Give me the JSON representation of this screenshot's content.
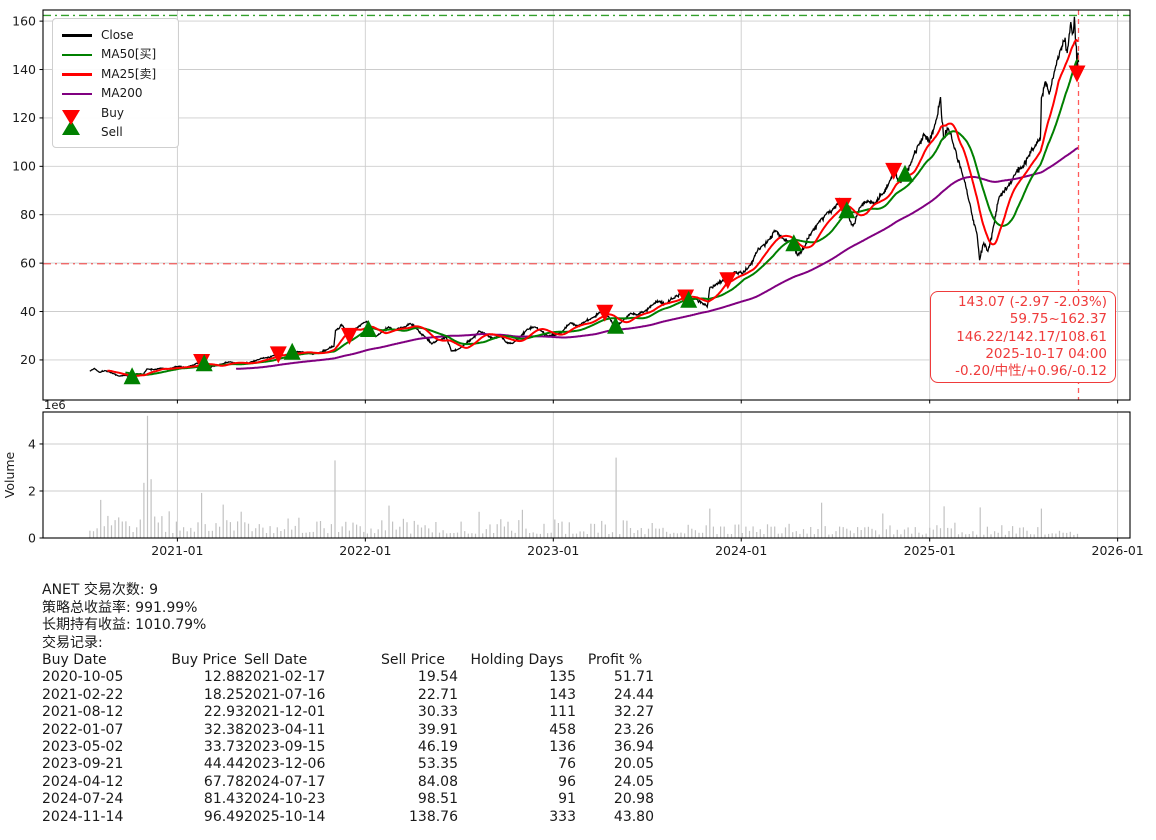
{
  "accent_colors": {
    "close": "#000000",
    "ma50": "#008000",
    "ma25": "#ff0000",
    "ma200": "#800080",
    "buy": "#008000",
    "sell": "#ff0000",
    "high_line": "#33a02c",
    "low_line": "#f25c5c",
    "vline": "#ff5a5a",
    "annotation": "#ef3b3b",
    "volume_bar": "#c2c2c2",
    "grid": "#cdcdcd"
  },
  "legend": {
    "items": [
      {
        "label": "Close",
        "color": "#000000",
        "kind": "line"
      },
      {
        "label": "MA50[买]",
        "color": "#008000",
        "kind": "line"
      },
      {
        "label": "MA25[卖]",
        "color": "#ff0000",
        "kind": "line"
      },
      {
        "label": "MA200",
        "color": "#800080",
        "kind": "line"
      },
      {
        "label": "Buy",
        "color": "#008000",
        "kind": "triangle-up"
      },
      {
        "label": "Sell",
        "color": "#ff0000",
        "kind": "triangle-down"
      }
    ]
  },
  "annotation": {
    "lines": [
      "143.07 (-2.97 -2.03%)",
      "59.75~162.37",
      "146.22/142.17/108.61",
      "2025-10-17 04:00",
      "-0.20/中性/+0.96/-0.12"
    ]
  },
  "summary": {
    "line1": "ANET 交易次数: 9",
    "line2": "策略总收益率: 991.99%",
    "line3": "长期持有收益: 1010.79%",
    "line4": "交易记录:"
  },
  "table": {
    "headers": [
      "Buy Date",
      "Buy Price",
      "Sell Date",
      "Sell Price",
      "Holding Days",
      "Profit %"
    ]
  },
  "chart_data": {
    "type": "line",
    "title": "",
    "xlabel": "",
    "ylabel": "",
    "grid": true,
    "legend_position": "upper-left",
    "x_axis": {
      "lim": [
        "2020-04-15",
        "2026-01-25"
      ],
      "tick_labels": [
        "2021-01",
        "2022-01",
        "2023-01",
        "2024-01",
        "2025-01",
        "2026-01"
      ],
      "tick_dates": [
        "2021-01-01",
        "2022-01-01",
        "2023-01-01",
        "2024-01-01",
        "2025-01-01",
        "2026-01-01"
      ]
    },
    "y_axis": {
      "lim": [
        3.44,
        164.6
      ],
      "ticks": [
        20,
        40,
        60,
        80,
        100,
        120,
        140,
        160
      ]
    },
    "volume_axis": {
      "lim_millions": [
        0,
        5.36
      ],
      "ticks": [
        0,
        2,
        4
      ],
      "offset_label": "1e6",
      "label": "Volume"
    },
    "levels": {
      "high_52w": 162.37,
      "low_52w": 59.75,
      "last_close": 143.07,
      "last_date": "2025-10-17"
    },
    "ma_lines": [
      {
        "name": "MA200",
        "window_days": 285,
        "color": "#800080"
      },
      {
        "name": "MA50",
        "window_days": 70,
        "color": "#008000"
      },
      {
        "name": "MA25",
        "window_days": 35,
        "color": "#ff0000"
      }
    ],
    "close_series": [
      [
        "2020-07-15",
        15.3
      ],
      [
        "2020-07-24",
        16.5
      ],
      [
        "2020-08-03",
        14.9
      ],
      [
        "2020-08-13",
        15.6
      ],
      [
        "2020-08-31",
        14.3
      ],
      [
        "2020-09-10",
        13.3
      ],
      [
        "2020-09-23",
        13.6
      ],
      [
        "2020-10-05",
        12.88
      ],
      [
        "2020-10-14",
        14.3
      ],
      [
        "2020-10-27",
        14.0
      ],
      [
        "2020-11-03",
        16.3
      ],
      [
        "2020-11-17",
        16.0
      ],
      [
        "2020-12-01",
        16.6
      ],
      [
        "2020-12-15",
        16.3
      ],
      [
        "2021-01-05",
        17.4
      ],
      [
        "2021-01-19",
        17.0
      ],
      [
        "2021-02-01",
        17.8
      ],
      [
        "2021-02-17",
        19.54
      ],
      [
        "2021-02-22",
        18.25
      ],
      [
        "2021-03-04",
        16.9
      ],
      [
        "2021-03-16",
        17.6
      ],
      [
        "2021-03-30",
        18.4
      ],
      [
        "2021-04-13",
        19.2
      ],
      [
        "2021-04-27",
        18.7
      ],
      [
        "2021-05-11",
        18.3
      ],
      [
        "2021-05-25",
        19.3
      ],
      [
        "2021-06-08",
        20.1
      ],
      [
        "2021-06-22",
        20.9
      ],
      [
        "2021-07-06",
        21.8
      ],
      [
        "2021-07-16",
        22.71
      ],
      [
        "2021-07-27",
        21.9
      ],
      [
        "2021-08-12",
        22.93
      ],
      [
        "2021-08-25",
        23.4
      ],
      [
        "2021-09-08",
        23.0
      ],
      [
        "2021-09-21",
        22.3
      ],
      [
        "2021-10-05",
        23.2
      ],
      [
        "2021-10-19",
        24.3
      ],
      [
        "2021-11-01",
        25.6
      ],
      [
        "2021-11-04",
        32.2
      ],
      [
        "2021-11-16",
        34.6
      ],
      [
        "2021-11-23",
        32.8
      ],
      [
        "2021-12-01",
        30.33
      ],
      [
        "2021-12-08",
        32.3
      ],
      [
        "2021-12-28",
        35.2
      ],
      [
        "2022-01-04",
        35.9
      ],
      [
        "2022-01-07",
        32.38
      ],
      [
        "2022-01-21",
        29.6
      ],
      [
        "2022-02-04",
        31.6
      ],
      [
        "2022-02-15",
        33.7
      ],
      [
        "2022-03-01",
        32.2
      ],
      [
        "2022-03-15",
        33.4
      ],
      [
        "2022-03-29",
        35.1
      ],
      [
        "2022-04-12",
        32.6
      ],
      [
        "2022-04-26",
        29.8
      ],
      [
        "2022-05-10",
        26.6
      ],
      [
        "2022-05-24",
        28.4
      ],
      [
        "2022-06-07",
        29.5
      ],
      [
        "2022-06-17",
        23.7
      ],
      [
        "2022-06-30",
        24.4
      ],
      [
        "2022-07-14",
        26.6
      ],
      [
        "2022-07-28",
        28.9
      ],
      [
        "2022-08-09",
        31.9
      ],
      [
        "2022-08-23",
        30.6
      ],
      [
        "2022-09-06",
        29.0
      ],
      [
        "2022-09-20",
        30.1
      ],
      [
        "2022-09-30",
        27.5
      ],
      [
        "2022-10-14",
        26.8
      ],
      [
        "2022-10-28",
        29.3
      ],
      [
        "2022-11-11",
        32.6
      ],
      [
        "2022-11-25",
        33.6
      ],
      [
        "2022-12-09",
        32.0
      ],
      [
        "2022-12-22",
        29.9
      ],
      [
        "2023-01-06",
        30.3
      ],
      [
        "2023-01-20",
        32.1
      ],
      [
        "2023-02-03",
        35.3
      ],
      [
        "2023-02-17",
        34.2
      ],
      [
        "2023-03-03",
        35.6
      ],
      [
        "2023-03-17",
        37.3
      ],
      [
        "2023-03-31",
        39.6
      ],
      [
        "2023-04-11",
        39.91
      ],
      [
        "2023-04-21",
        37.0
      ],
      [
        "2023-05-02",
        33.73
      ],
      [
        "2023-05-16",
        36.1
      ],
      [
        "2023-05-31",
        39.3
      ],
      [
        "2023-06-14",
        38.6
      ],
      [
        "2023-06-28",
        40.2
      ],
      [
        "2023-07-12",
        42.6
      ],
      [
        "2023-07-26",
        44.3
      ],
      [
        "2023-08-08",
        43.2
      ],
      [
        "2023-08-22",
        45.4
      ],
      [
        "2023-09-05",
        47.4
      ],
      [
        "2023-09-15",
        46.19
      ],
      [
        "2023-09-21",
        44.44
      ],
      [
        "2023-10-03",
        45.8
      ],
      [
        "2023-10-17",
        43.6
      ],
      [
        "2023-10-27",
        41.9
      ],
      [
        "2023-11-01",
        49.8
      ],
      [
        "2023-11-14",
        51.6
      ],
      [
        "2023-11-28",
        52.8
      ],
      [
        "2023-12-06",
        53.35
      ],
      [
        "2023-12-19",
        56.4
      ],
      [
        "2024-01-03",
        55.6
      ],
      [
        "2024-01-17",
        59.0
      ],
      [
        "2024-01-31",
        64.3
      ],
      [
        "2024-02-09",
        66.8
      ],
      [
        "2024-02-23",
        69.6
      ],
      [
        "2024-03-08",
        73.4
      ],
      [
        "2024-03-22",
        70.3
      ],
      [
        "2024-04-05",
        69.0
      ],
      [
        "2024-04-12",
        67.78
      ],
      [
        "2024-04-19",
        63.2
      ],
      [
        "2024-05-03",
        66.7
      ],
      [
        "2024-05-17",
        72.9
      ],
      [
        "2024-05-31",
        77.1
      ],
      [
        "2024-06-14",
        80.2
      ],
      [
        "2024-06-28",
        82.5
      ],
      [
        "2024-07-10",
        86.4
      ],
      [
        "2024-07-17",
        84.08
      ],
      [
        "2024-07-24",
        81.43
      ],
      [
        "2024-08-05",
        75.4
      ],
      [
        "2024-08-19",
        83.1
      ],
      [
        "2024-09-03",
        85.9
      ],
      [
        "2024-09-17",
        84.6
      ],
      [
        "2024-10-01",
        88.3
      ],
      [
        "2024-10-15",
        93.8
      ],
      [
        "2024-10-23",
        98.51
      ],
      [
        "2024-11-01",
        93.9
      ],
      [
        "2024-11-14",
        96.49
      ],
      [
        "2024-11-27",
        101.8
      ],
      [
        "2024-12-10",
        108.9
      ],
      [
        "2024-12-20",
        113.4
      ],
      [
        "2024-12-31",
        109.6
      ],
      [
        "2025-01-10",
        116.3
      ],
      [
        "2025-01-22",
        128.6
      ],
      [
        "2025-01-28",
        111.4
      ],
      [
        "2025-02-06",
        115.6
      ],
      [
        "2025-02-20",
        106.9
      ],
      [
        "2025-03-06",
        96.3
      ],
      [
        "2025-03-20",
        84.6
      ],
      [
        "2025-04-03",
        71.8
      ],
      [
        "2025-04-08",
        61.2
      ],
      [
        "2025-04-16",
        68.3
      ],
      [
        "2025-04-24",
        64.9
      ],
      [
        "2025-05-06",
        76.1
      ],
      [
        "2025-05-16",
        87.4
      ],
      [
        "2025-06-02",
        91.8
      ],
      [
        "2025-06-16",
        96.6
      ],
      [
        "2025-06-30",
        99.8
      ],
      [
        "2025-07-11",
        103.9
      ],
      [
        "2025-07-23",
        107.6
      ],
      [
        "2025-08-04",
        111.6
      ],
      [
        "2025-08-06",
        128.3
      ],
      [
        "2025-08-13",
        134.8
      ],
      [
        "2025-08-21",
        129.7
      ],
      [
        "2025-09-03",
        141.6
      ],
      [
        "2025-09-11",
        147.9
      ],
      [
        "2025-09-19",
        151.8
      ],
      [
        "2025-09-25",
        146.8
      ],
      [
        "2025-10-02",
        159.6
      ],
      [
        "2025-10-07",
        155.2
      ],
      [
        "2025-10-09",
        161.8
      ],
      [
        "2025-10-13",
        149.5
      ],
      [
        "2025-10-14",
        138.76
      ],
      [
        "2025-10-16",
        147.0
      ],
      [
        "2025-10-17",
        143.07
      ]
    ],
    "trades": [
      {
        "buy_date": "2020-10-05",
        "buy_price": "12.88",
        "sell_date": "2021-02-17",
        "sell_price": "19.54",
        "holding_days": "135",
        "profit_pct": "51.71"
      },
      {
        "buy_date": "2021-02-22",
        "buy_price": "18.25",
        "sell_date": "2021-07-16",
        "sell_price": "22.71",
        "holding_days": "143",
        "profit_pct": "24.44"
      },
      {
        "buy_date": "2021-08-12",
        "buy_price": "22.93",
        "sell_date": "2021-12-01",
        "sell_price": "30.33",
        "holding_days": "111",
        "profit_pct": "32.27"
      },
      {
        "buy_date": "2022-01-07",
        "buy_price": "32.38",
        "sell_date": "2023-04-11",
        "sell_price": "39.91",
        "holding_days": "458",
        "profit_pct": "23.26"
      },
      {
        "buy_date": "2023-05-02",
        "buy_price": "33.73",
        "sell_date": "2023-09-15",
        "sell_price": "46.19",
        "holding_days": "136",
        "profit_pct": "36.94"
      },
      {
        "buy_date": "2023-09-21",
        "buy_price": "44.44",
        "sell_date": "2023-12-06",
        "sell_price": "53.35",
        "holding_days": "76",
        "profit_pct": "20.05"
      },
      {
        "buy_date": "2024-04-12",
        "buy_price": "67.78",
        "sell_date": "2024-07-17",
        "sell_price": "84.08",
        "holding_days": "96",
        "profit_pct": "24.05"
      },
      {
        "buy_date": "2024-07-24",
        "buy_price": "81.43",
        "sell_date": "2024-10-23",
        "sell_price": "98.51",
        "holding_days": "91",
        "profit_pct": "20.98"
      },
      {
        "buy_date": "2024-11-14",
        "buy_price": "96.49",
        "sell_date": "2025-10-14",
        "sell_price": "138.76",
        "holding_days": "333",
        "profit_pct": "43.80"
      }
    ],
    "volume_spikes_millions": [
      [
        "2020-08-04",
        1.62
      ],
      [
        "2020-10-28",
        2.35
      ],
      [
        "2020-11-04",
        5.2
      ],
      [
        "2020-11-11",
        2.5
      ],
      [
        "2021-02-17",
        1.92
      ],
      [
        "2021-05-05",
        1.12
      ],
      [
        "2021-11-03",
        3.3
      ],
      [
        "2022-02-15",
        1.38
      ],
      [
        "2022-11-01",
        1.2
      ],
      [
        "2023-05-02",
        3.42
      ],
      [
        "2023-11-01",
        1.25
      ],
      [
        "2024-06-04",
        1.5
      ],
      [
        "2025-01-28",
        1.35
      ],
      [
        "2025-04-08",
        1.3
      ],
      [
        "2025-08-06",
        1.25
      ]
    ]
  }
}
